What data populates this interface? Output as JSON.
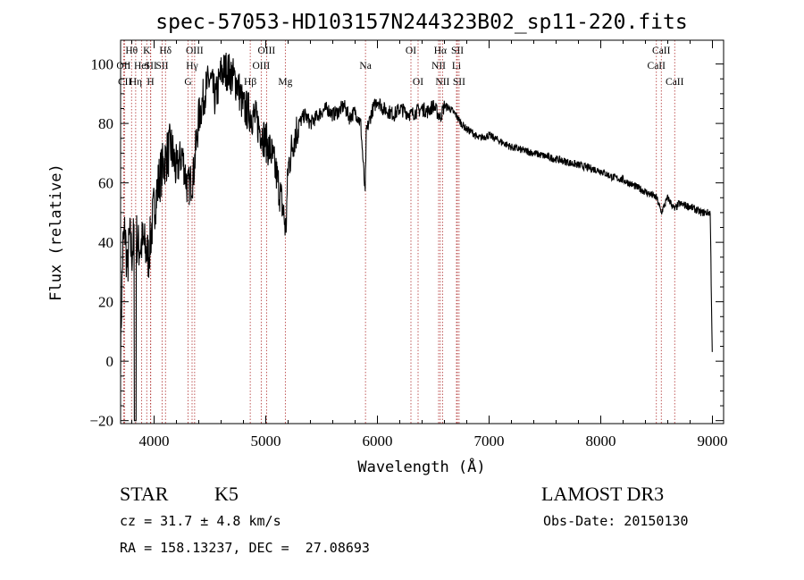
{
  "chart_data": {
    "type": "line",
    "title": "spec-57053-HD103157N244323B02_sp11-220.fits",
    "xlabel": "Wavelength (Å)",
    "ylabel": "Flux (relative)",
    "xlim": [
      3700,
      9100
    ],
    "ylim": [
      -21,
      108
    ],
    "x_ticks": [
      4000,
      5000,
      6000,
      7000,
      8000,
      9000
    ],
    "y_ticks": [
      -20,
      0,
      20,
      40,
      60,
      80,
      100
    ],
    "grid": false,
    "series": [
      {
        "x": [
          3700,
          3720,
          3740,
          3760,
          3780,
          3800,
          3830,
          3860,
          3900,
          3950,
          4000,
          4050,
          4100,
          4150,
          4200,
          4250,
          4300,
          4350,
          4400,
          4450,
          4500,
          4550,
          4600,
          4650,
          4700,
          4750,
          4800,
          4850,
          4900,
          4950,
          5000,
          5050,
          5100,
          5150,
          5180,
          5200,
          5250,
          5300,
          5350,
          5400,
          5450,
          5500,
          5550,
          5600,
          5650,
          5700,
          5750,
          5800,
          5850,
          5890,
          5900,
          5950,
          6000,
          6050,
          6100,
          6150,
          6200,
          6250,
          6300,
          6350,
          6400,
          6450,
          6500,
          6563,
          6600,
          6650,
          6700,
          6750,
          6800,
          6850,
          6900,
          7000,
          7100,
          7200,
          7300,
          7400,
          7500,
          7600,
          7700,
          7800,
          7900,
          8000,
          8100,
          8200,
          8300,
          8400,
          8500,
          8542,
          8600,
          8662,
          8700,
          8800,
          8900,
          8980,
          9000
        ],
        "y": [
          5,
          38,
          44,
          30,
          42,
          36,
          45,
          38,
          40,
          35,
          52,
          62,
          68,
          72,
          64,
          70,
          58,
          62,
          82,
          90,
          95,
          88,
          97,
          98,
          96,
          93,
          85,
          84,
          82,
          78,
          74,
          70,
          62,
          52,
          44,
          65,
          75,
          80,
          83,
          80,
          82,
          84,
          85,
          83,
          84,
          86,
          82,
          84,
          80,
          56,
          77,
          84,
          88,
          85,
          84,
          83,
          85,
          84,
          83,
          84,
          85,
          84,
          86,
          82,
          86,
          85,
          83,
          80,
          78,
          77,
          75,
          76,
          74,
          72,
          71,
          70,
          69,
          68,
          67,
          66,
          65,
          64,
          62,
          61,
          59,
          57,
          55,
          50,
          55,
          51,
          53,
          52,
          50,
          50,
          -2
        ]
      }
    ],
    "spectral_lines": [
      {
        "label": "Hθ",
        "x": 3798,
        "row": 0
      },
      {
        "label": "OII",
        "x": 3727,
        "row": 1
      },
      {
        "label": "CII",
        "x": 3737,
        "row": 2
      },
      {
        "label": "Hη",
        "x": 3835,
        "row": 2
      },
      {
        "label": "HeI",
        "x": 3889,
        "row": 1
      },
      {
        "label": "K",
        "x": 3934,
        "row": 0
      },
      {
        "label": "SII",
        "x": 3970,
        "row": 1
      },
      {
        "label": "H",
        "x": 3968,
        "row": 2
      },
      {
        "label": "Hδ",
        "x": 4102,
        "row": 0
      },
      {
        "label": "SII",
        "x": 4072,
        "row": 1
      },
      {
        "label": "OIII",
        "x": 4363,
        "row": 0
      },
      {
        "label": "Hγ",
        "x": 4340,
        "row": 1
      },
      {
        "label": "G",
        "x": 4304,
        "row": 2
      },
      {
        "label": "Hβ",
        "x": 4861,
        "row": 2
      },
      {
        "label": "OIII",
        "x": 5007,
        "row": 0
      },
      {
        "label": "OIII",
        "x": 4959,
        "row": 1
      },
      {
        "label": "Mg",
        "x": 5175,
        "row": 2
      },
      {
        "label": "Na",
        "x": 5893,
        "row": 1
      },
      {
        "label": "OI",
        "x": 6300,
        "row": 0
      },
      {
        "label": "OI",
        "x": 6364,
        "row": 2
      },
      {
        "label": "Hα",
        "x": 6563,
        "row": 0
      },
      {
        "label": "SII",
        "x": 6716,
        "row": 0
      },
      {
        "label": "NII",
        "x": 6548,
        "row": 1
      },
      {
        "label": "Li",
        "x": 6708,
        "row": 1
      },
      {
        "label": "NII",
        "x": 6583,
        "row": 2
      },
      {
        "label": "SII",
        "x": 6731,
        "row": 2
      },
      {
        "label": "CaII",
        "x": 8542,
        "row": 0
      },
      {
        "label": "CaII",
        "x": 8498,
        "row": 1
      },
      {
        "label": "CaII",
        "x": 8662,
        "row": 2
      }
    ]
  },
  "info": {
    "object_class": "STAR",
    "subclass": "K5",
    "survey": "LAMOST DR3",
    "redshift": "cz = 31.7 ± 4.8 km/s",
    "obs_date": "Obs-Date: 20150130",
    "coordinates": "RA = 158.13237, DEC =  27.08693"
  },
  "colors": {
    "spectrum": "#000000",
    "line_markers": "#b03030"
  }
}
